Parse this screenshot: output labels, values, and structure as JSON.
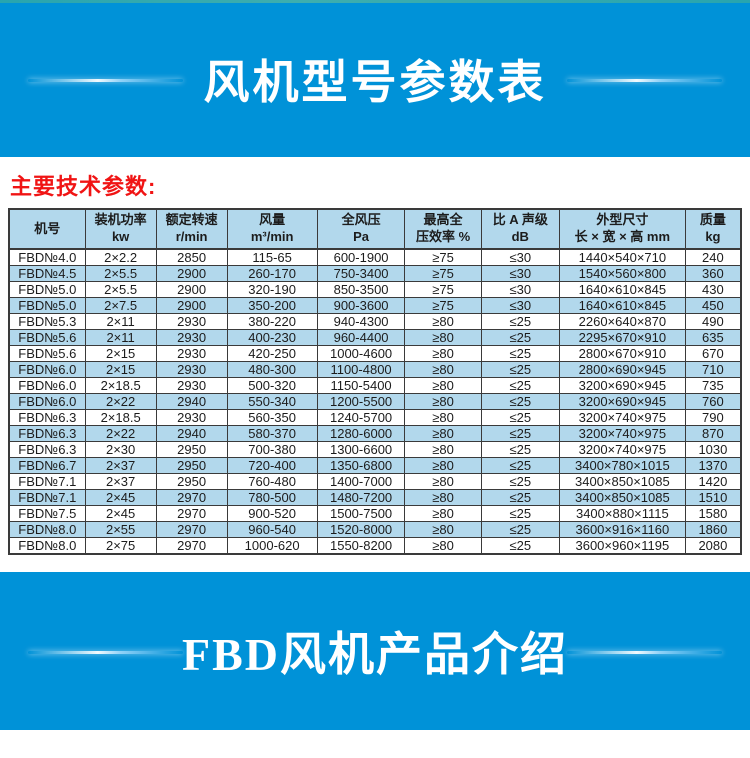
{
  "page": {
    "top_banner": {
      "title": "风机型号参数表"
    },
    "section_heading": "主要技术参数:",
    "bottom_banner": {
      "title": "FBD风机产品介绍"
    }
  },
  "colors": {
    "banner_blue": "#0092d8",
    "row_stripe_blue": "#b2d8ec",
    "header_blue": "#b2d8ec",
    "heading_red": "#f01414",
    "table_border": "#3a3a3a"
  },
  "table": {
    "columns": [
      {
        "line1": "机号",
        "line2": ""
      },
      {
        "line1": "装机功率",
        "line2": "kw"
      },
      {
        "line1": "额定转速",
        "line2": "r/min"
      },
      {
        "line1": "风量",
        "line2": "m³/min"
      },
      {
        "line1": "全风压",
        "line2": "Pa"
      },
      {
        "line1": "最高全",
        "line2": "压效率 %"
      },
      {
        "line1": "比 A 声级",
        "line2": "dB"
      },
      {
        "line1": "外型尺寸",
        "line2": "长 × 宽 × 高 mm"
      },
      {
        "line1": "质量",
        "line2": "kg"
      }
    ],
    "rows": [
      [
        "FBD№4.0",
        "2×2.2",
        "2850",
        "115-65",
        "600-1900",
        "≥75",
        "≤30",
        "1440×540×710",
        "240"
      ],
      [
        "FBD№4.5",
        "2×5.5",
        "2900",
        "260-170",
        "750-3400",
        "≥75",
        "≤30",
        "1540×560×800",
        "360"
      ],
      [
        "FBD№5.0",
        "2×5.5",
        "2900",
        "320-190",
        "850-3500",
        "≥75",
        "≤30",
        "1640×610×845",
        "430"
      ],
      [
        "FBD№5.0",
        "2×7.5",
        "2900",
        "350-200",
        "900-3600",
        "≥75",
        "≤30",
        "1640×610×845",
        "450"
      ],
      [
        "FBD№5.3",
        "2×11",
        "2930",
        "380-220",
        "940-4300",
        "≥80",
        "≤25",
        "2260×640×870",
        "490"
      ],
      [
        "FBD№5.6",
        "2×11",
        "2930",
        "400-230",
        "960-4400",
        "≥80",
        "≤25",
        "2295×670×910",
        "635"
      ],
      [
        "FBD№5.6",
        "2×15",
        "2930",
        "420-250",
        "1000-4600",
        "≥80",
        "≤25",
        "2800×670×910",
        "670"
      ],
      [
        "FBD№6.0",
        "2×15",
        "2930",
        "480-300",
        "1100-4800",
        "≥80",
        "≤25",
        "2800×690×945",
        "710"
      ],
      [
        "FBD№6.0",
        "2×18.5",
        "2930",
        "500-320",
        "1150-5400",
        "≥80",
        "≤25",
        "3200×690×945",
        "735"
      ],
      [
        "FBD№6.0",
        "2×22",
        "2940",
        "550-340",
        "1200-5500",
        "≥80",
        "≤25",
        "3200×690×945",
        "760"
      ],
      [
        "FBD№6.3",
        "2×18.5",
        "2930",
        "560-350",
        "1240-5700",
        "≥80",
        "≤25",
        "3200×740×975",
        "790"
      ],
      [
        "FBD№6.3",
        "2×22",
        "2940",
        "580-370",
        "1280-6000",
        "≥80",
        "≤25",
        "3200×740×975",
        "870"
      ],
      [
        "FBD№6.3",
        "2×30",
        "2950",
        "700-380",
        "1300-6600",
        "≥80",
        "≤25",
        "3200×740×975",
        "1030"
      ],
      [
        "FBD№6.7",
        "2×37",
        "2950",
        "720-400",
        "1350-6800",
        "≥80",
        "≤25",
        "3400×780×1015",
        "1370"
      ],
      [
        "FBD№7.1",
        "2×37",
        "2950",
        "760-480",
        "1400-7000",
        "≥80",
        "≤25",
        "3400×850×1085",
        "1420"
      ],
      [
        "FBD№7.1",
        "2×45",
        "2970",
        "780-500",
        "1480-7200",
        "≥80",
        "≤25",
        "3400×850×1085",
        "1510"
      ],
      [
        "FBD№7.5",
        "2×45",
        "2970",
        "900-520",
        "1500-7500",
        "≥80",
        "≤25",
        "3400×880×1115",
        "1580"
      ],
      [
        "FBD№8.0",
        "2×55",
        "2970",
        "960-540",
        "1520-8000",
        "≥80",
        "≤25",
        "3600×916×1160",
        "1860"
      ],
      [
        "FBD№8.0",
        "2×75",
        "2970",
        "1000-620",
        "1550-8200",
        "≥80",
        "≤25",
        "3600×960×1195",
        "2080"
      ]
    ]
  }
}
